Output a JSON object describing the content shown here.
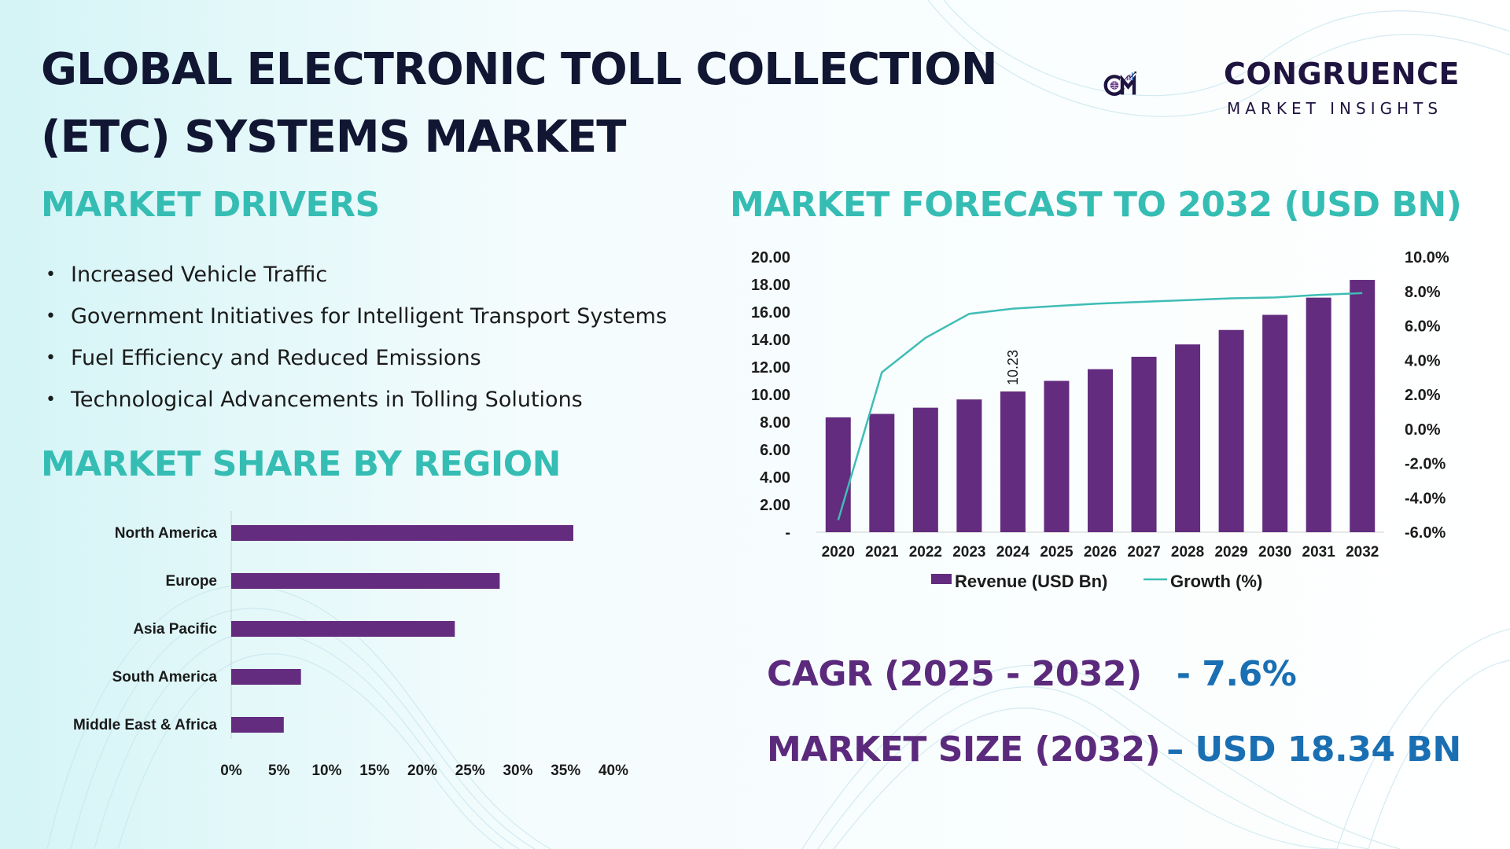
{
  "title_line1": "GLOBAL ELECTRONIC TOLL COLLECTION",
  "title_line2": "(ETC) SYSTEMS MARKET",
  "logo": {
    "name": "CONGRUENCE",
    "tagline": "MARKET INSIGHTS"
  },
  "drivers": {
    "heading": "MARKET DRIVERS",
    "items": [
      "Increased Vehicle Traffic",
      "Government Initiatives for Intelligent Transport Systems",
      "Fuel Efficiency and Reduced Emissions",
      "Technological Advancements in Tolling Solutions"
    ]
  },
  "region": {
    "heading": "MARKET SHARE BY REGION"
  },
  "forecast": {
    "heading": "MARKET FORECAST TO 2032 (USD BN)"
  },
  "stats": {
    "cagr_label": "CAGR (2025 - 2032)",
    "cagr_value": "- 7.6%",
    "size_label": "MARKET SIZE (2032)",
    "size_value": "– USD 18.34 BN"
  },
  "colors": {
    "bar": "#632c7e",
    "line": "#3fbdb5",
    "heading": "#35bdb4",
    "stat_label": "#5b2a7c",
    "stat_value": "#1a6fb3"
  },
  "chart_data": [
    {
      "type": "bar",
      "orientation": "horizontal",
      "categories": [
        "North America",
        "Europe",
        "Asia Pacific",
        "South America",
        "Middle East & Africa"
      ],
      "values": [
        35.8,
        28.1,
        23.4,
        7.3,
        5.5
      ],
      "xlim": [
        0,
        40
      ],
      "xticks": [
        "0%",
        "5%",
        "10%",
        "15%",
        "20%",
        "25%",
        "30%",
        "35%",
        "40%"
      ],
      "grid": false
    },
    {
      "type": "bar",
      "categories": [
        "2020",
        "2021",
        "2022",
        "2023",
        "2024",
        "2025",
        "2026",
        "2027",
        "2028",
        "2029",
        "2030",
        "2031",
        "2032"
      ],
      "series": [
        {
          "name": "Revenue (USD Bn)",
          "type": "bar",
          "axis": "left",
          "values": [
            8.35,
            8.6,
            9.05,
            9.65,
            10.23,
            11.0,
            11.85,
            12.75,
            13.65,
            14.7,
            15.8,
            17.05,
            18.34
          ]
        },
        {
          "name": "Growth (%)",
          "type": "line",
          "axis": "right",
          "values": [
            -5.3,
            3.3,
            5.3,
            6.7,
            7.0,
            7.15,
            7.3,
            7.4,
            7.5,
            7.6,
            7.65,
            7.8,
            7.9
          ]
        }
      ],
      "data_labels": [
        {
          "category": "2024",
          "text": "10.23"
        }
      ],
      "y_left": {
        "ylim": [
          0,
          20
        ],
        "ticks": [
          "-",
          "2.00",
          "4.00",
          "6.00",
          "8.00",
          "10.00",
          "12.00",
          "14.00",
          "16.00",
          "18.00",
          "20.00"
        ]
      },
      "y_right": {
        "ylim": [
          -6,
          10
        ],
        "ticks": [
          "-6.0%",
          "-4.0%",
          "-2.0%",
          "0.0%",
          "2.0%",
          "4.0%",
          "6.0%",
          "8.0%",
          "10.0%"
        ]
      },
      "legend_position": "bottom",
      "grid": false
    }
  ]
}
